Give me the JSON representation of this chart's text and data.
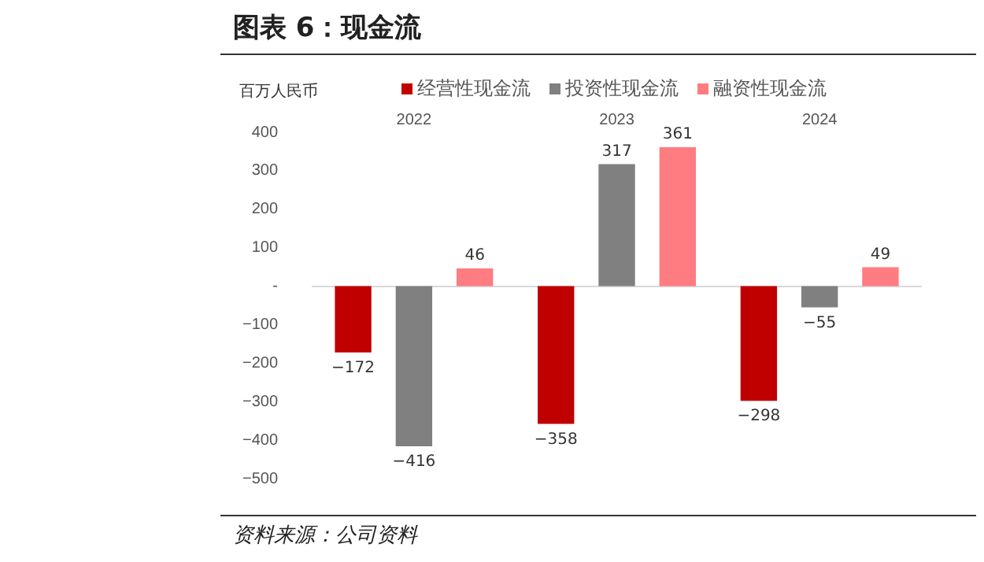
{
  "chart_data": {
    "type": "bar",
    "title": "图表 6：现金流",
    "ylabel": "百万人民币",
    "categories": [
      "2022",
      "2023",
      "2024"
    ],
    "series": [
      {
        "name": "经营性现金流",
        "color": "#c00000",
        "values": [
          -172,
          -358,
          -298
        ]
      },
      {
        "name": "投资性现金流",
        "color": "#808080",
        "values": [
          -416,
          317,
          -55
        ]
      },
      {
        "name": "融资性现金流",
        "color": "#ff7c80",
        "values": [
          46,
          361,
          49
        ]
      }
    ],
    "ylim": [
      -500,
      400
    ],
    "yticks": [
      400,
      300,
      200,
      100,
      {
        "value": 0,
        "label": "-"
      },
      -100,
      -200,
      -300,
      -400,
      -500
    ],
    "data_labels": true,
    "legend": "top",
    "annotations": [
      "资料来源：公司资料"
    ]
  }
}
